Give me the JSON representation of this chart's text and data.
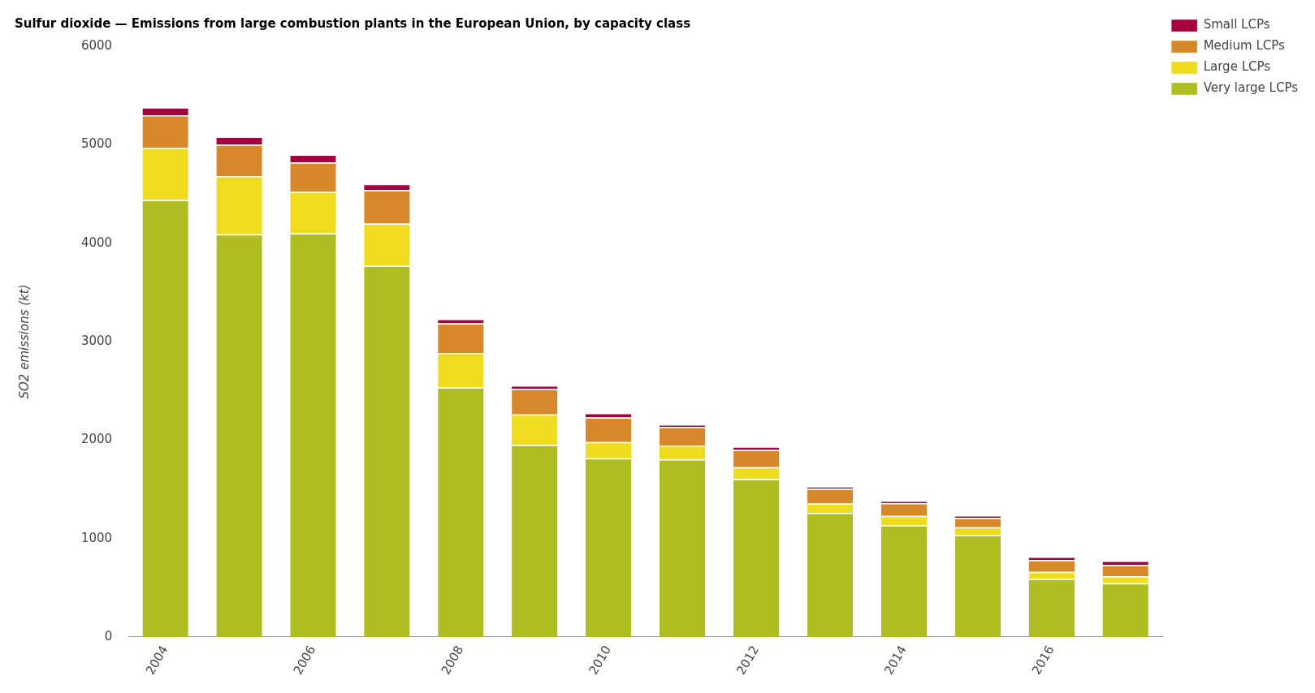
{
  "chart_data": {
    "type": "bar",
    "title": "Sulfur dioxide — Emissions from large combustion plants in the European Union, by capacity class",
    "ylabel": "SO2 emissions (kt)",
    "categories": [
      "2004",
      null,
      "2006",
      null,
      "2008",
      null,
      "2010",
      null,
      "2012",
      null,
      "2014",
      null,
      "2016",
      null
    ],
    "stacked": true,
    "ylim": [
      0,
      6000
    ],
    "yticks": [
      0,
      1000,
      2000,
      3000,
      4000,
      5000,
      6000
    ],
    "grid": false,
    "legend": "top right",
    "series": [
      {
        "name": "Very large LCPs",
        "color": "#afbd22",
        "values": [
          4440,
          4090,
          4100,
          3770,
          2535,
          1950,
          1815,
          1805,
          1605,
          1260,
          1135,
          1035,
          590,
          545
        ]
      },
      {
        "name": "Large LCPs",
        "color": "#f0dc1e",
        "values": [
          530,
          590,
          420,
          430,
          350,
          310,
          165,
          140,
          120,
          95,
          95,
          80,
          70,
          70
        ]
      },
      {
        "name": "Medium LCPs",
        "color": "#d6882a",
        "values": [
          330,
          320,
          300,
          340,
          300,
          260,
          250,
          190,
          175,
          150,
          130,
          95,
          120,
          115
        ]
      },
      {
        "name": "Small LCPs",
        "color": "#a50040",
        "values": [
          80,
          80,
          80,
          60,
          45,
          35,
          45,
          25,
          35,
          25,
          25,
          25,
          35,
          45
        ]
      }
    ]
  }
}
